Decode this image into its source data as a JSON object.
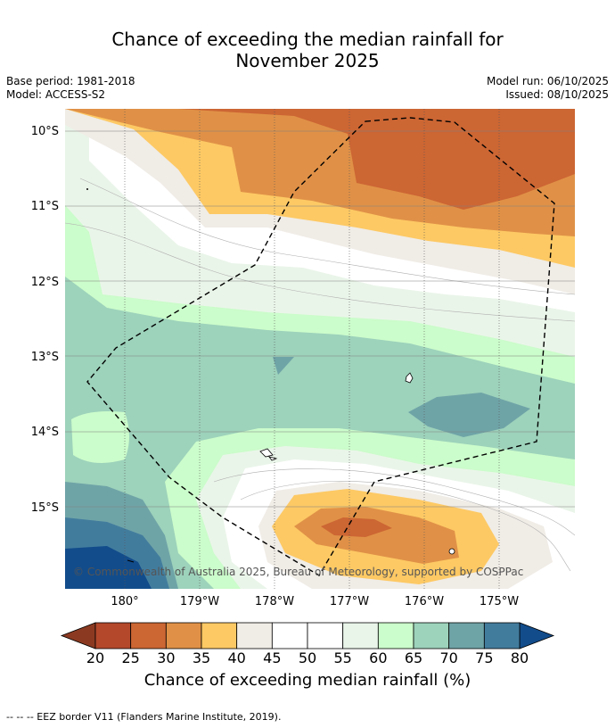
{
  "header": {
    "title_line1": "Chance of exceeding the median rainfall for",
    "title_line2": "November 2025",
    "base_period": "Base period: 1981-2018",
    "model": "Model: ACCESS-S2",
    "model_run": "Model run: 06/10/2025",
    "issued": "Issued: 08/10/2025"
  },
  "map": {
    "lat_labels": [
      "10°S",
      "11°S",
      "12°S",
      "13°S",
      "14°S",
      "15°S"
    ],
    "lon_labels": [
      "180°",
      "179°W",
      "178°W",
      "177°W",
      "176°W",
      "175°W"
    ],
    "copyright": "© Commonwealth of Australia 2025, Bureau of Meteorology, supported by COSPPac"
  },
  "colorbar": {
    "ticks": [
      "20",
      "25",
      "30",
      "35",
      "40",
      "45",
      "50",
      "55",
      "60",
      "65",
      "70",
      "75",
      "80"
    ],
    "colors": {
      "under": "#8b3a21",
      "c20": "#b3482b",
      "c25": "#cc6633",
      "c30": "#e09147",
      "c35": "#fdc964",
      "c40": "#f0ece6",
      "c45": "#ffffff",
      "c50": "#ffffff",
      "c55": "#eaf5e9",
      "c60": "#cbfccb",
      "c65": "#9dd2bb",
      "c70": "#6fa4a7",
      "c75": "#427c9d",
      "over": "#124c8b"
    },
    "title": "Chance of exceeding median rainfall (%)"
  },
  "footnote": "-- -- -- EEZ border V11 (Flanders Marine Institute, 2019)."
}
